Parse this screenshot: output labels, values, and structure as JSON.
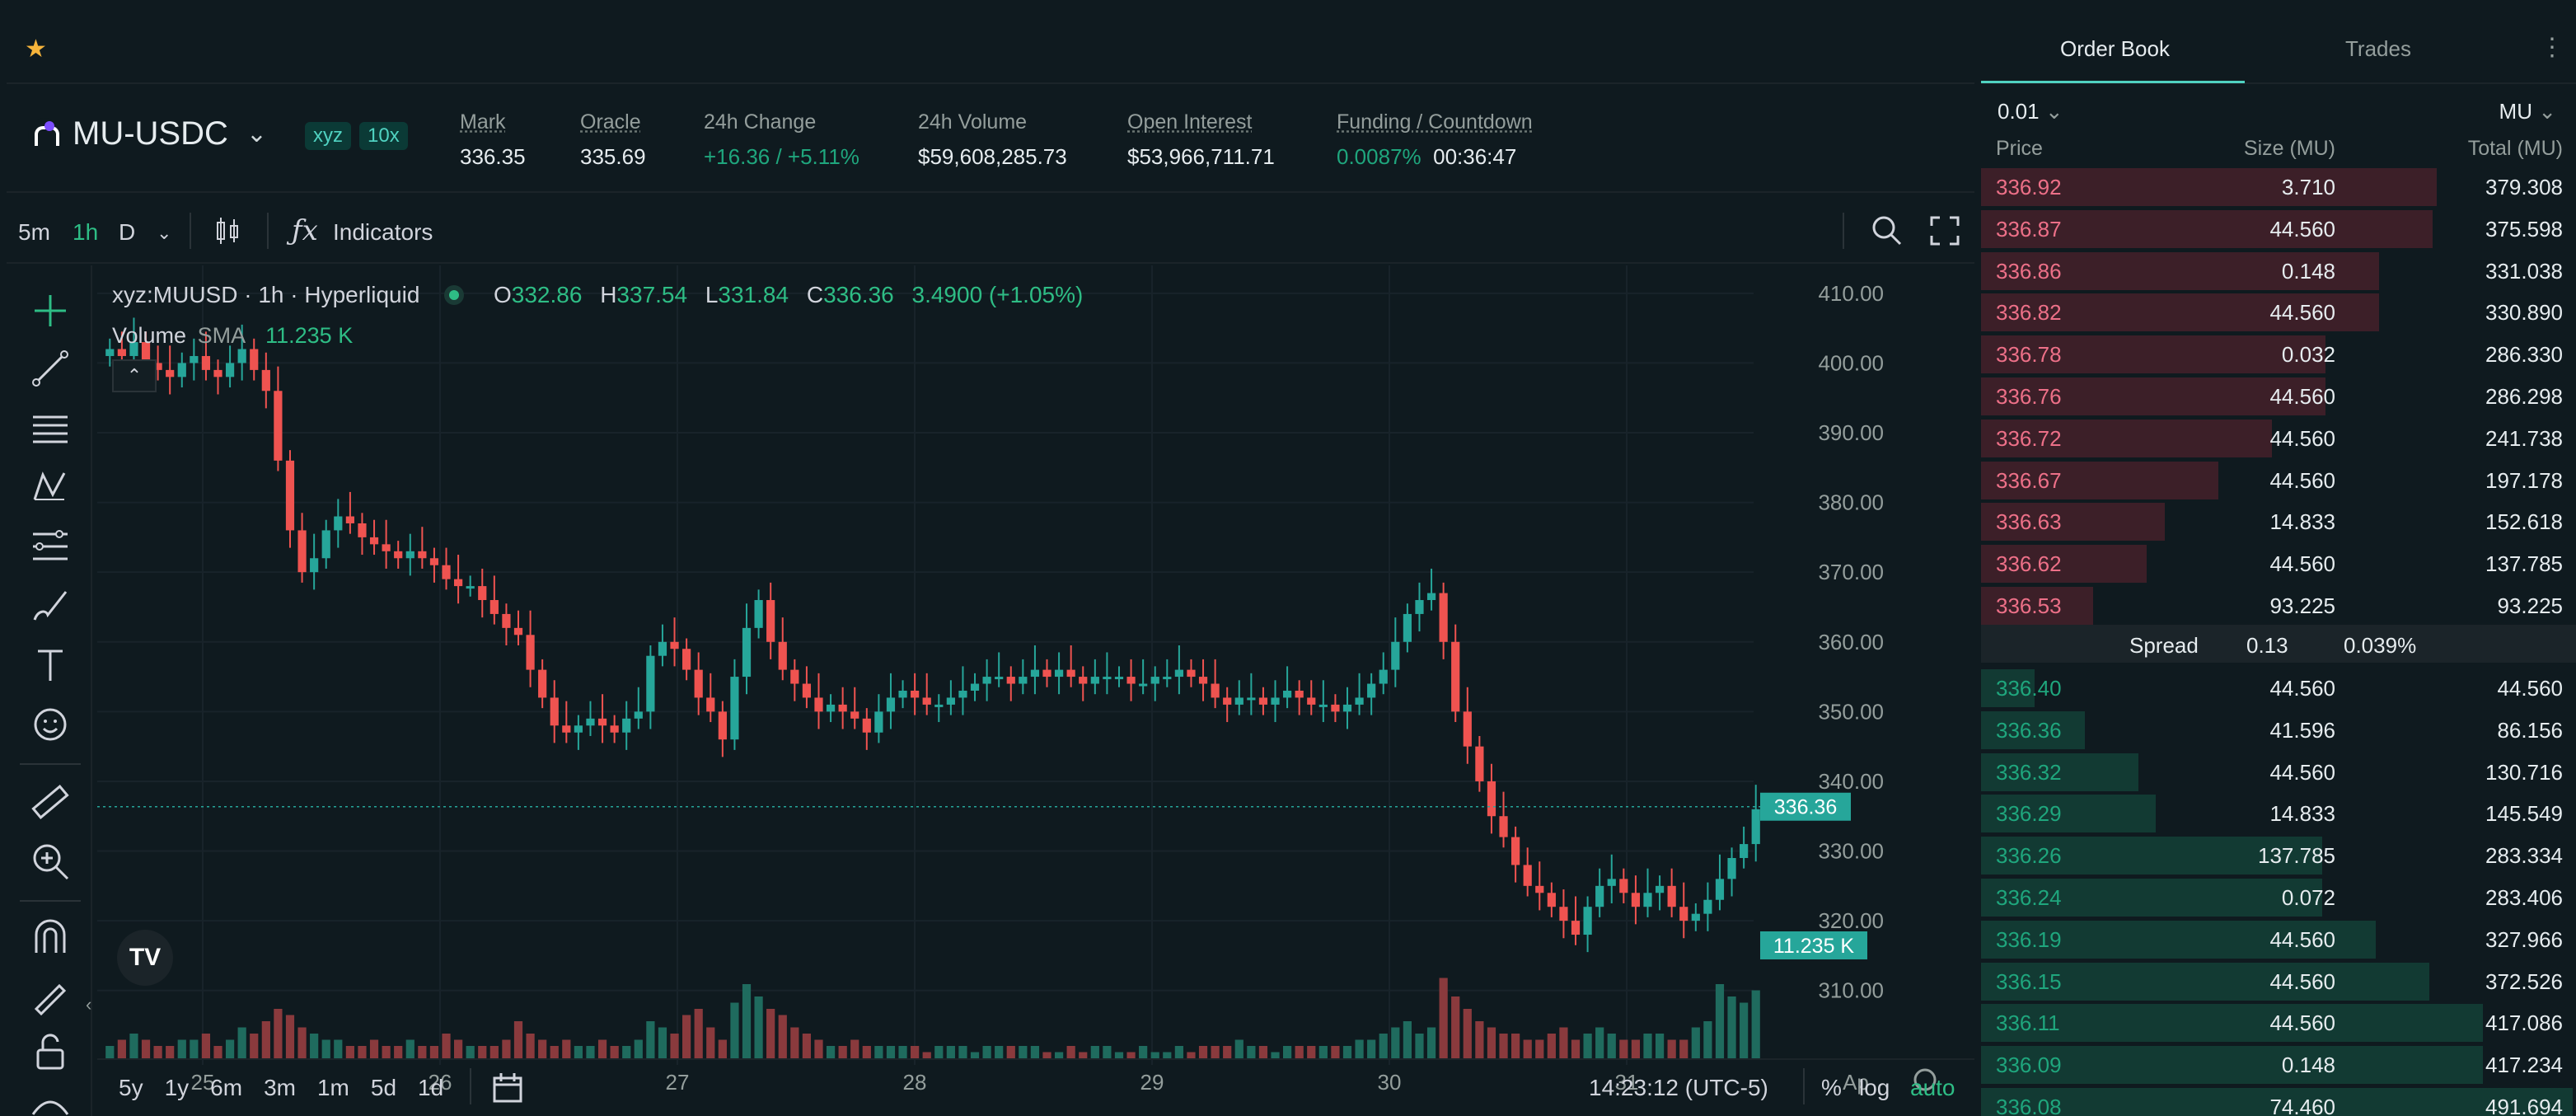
{
  "topbar": {
    "favorite_icon": "star-icon"
  },
  "header": {
    "symbol": "MU-USDC",
    "tag_dex": "xyz",
    "tag_leverage": "10x",
    "mark_label": "Mark",
    "mark_value": "336.35",
    "oracle_label": "Oracle",
    "oracle_value": "335.69",
    "change_label": "24h Change",
    "change_value": "+16.36 / +5.11%",
    "volume_label": "24h Volume",
    "volume_value": "$59,608,285.73",
    "oi_label": "Open Interest",
    "oi_value": "$53,966,711.71",
    "funding_label": "Funding / Countdown",
    "funding_rate": "0.0087%",
    "funding_countdown": "00:36:47"
  },
  "chart_toolbar": {
    "timeframes": [
      "5m",
      "1h",
      "D"
    ],
    "active_timeframe": "1h",
    "indicators_label": "Indicators"
  },
  "legend": {
    "title": "xyz:MUUSD · 1h · Hyperliquid",
    "o_label": "O",
    "o_value": "332.86",
    "h_label": "H",
    "h_value": "337.54",
    "l_label": "L",
    "l_value": "331.84",
    "c_label": "C",
    "c_value": "336.36",
    "change": "3.4900 (+1.05%)",
    "volume_label": "Volume",
    "sma_label": "SMA",
    "volume_value": "11.235 K"
  },
  "chart_data": {
    "type": "candlestick",
    "y_axis_ticks": [
      "410.00",
      "400.00",
      "390.00",
      "380.00",
      "370.00",
      "360.00",
      "350.00",
      "340.00",
      "330.00",
      "320.00",
      "310.00"
    ],
    "x_axis_ticks": [
      "25",
      "26",
      "27",
      "28",
      "29",
      "30",
      "31",
      "Ap"
    ],
    "ylim": [
      305,
      414
    ],
    "last_price_label": "336.36",
    "last_volume_label": "11.235 K",
    "close_series": [
      402,
      401,
      403,
      400,
      399,
      398,
      400,
      401,
      399,
      398,
      400,
      402,
      399,
      396,
      386,
      376,
      370,
      372,
      376,
      378,
      377,
      375,
      374,
      373,
      372,
      373,
      372,
      371,
      369,
      368,
      368,
      366,
      364,
      362,
      361,
      356,
      352,
      348,
      347,
      348,
      349,
      348,
      347,
      349,
      350,
      358,
      360,
      359,
      356,
      352,
      350,
      346,
      355,
      362,
      366,
      360,
      356,
      354,
      352,
      350,
      351,
      350,
      349,
      347,
      350,
      352,
      353,
      352,
      351,
      351,
      352,
      353,
      354,
      355,
      355,
      354,
      355,
      356,
      355,
      356,
      355,
      354,
      355,
      355,
      355,
      354,
      354,
      355,
      355,
      356,
      355,
      354,
      352,
      351,
      352,
      352,
      351,
      352,
      353,
      352,
      351,
      351,
      350,
      351,
      352,
      354,
      356,
      360,
      364,
      366,
      367,
      360,
      350,
      345,
      340,
      335,
      332,
      328,
      325,
      324,
      322,
      320,
      318,
      322,
      325,
      326,
      324,
      322,
      324,
      325,
      322,
      320,
      321,
      323,
      326,
      329,
      331,
      336
    ],
    "volume_series": [
      2,
      3,
      4,
      3,
      2,
      2,
      3,
      3,
      4,
      2,
      3,
      5,
      4,
      6,
      8,
      7,
      5,
      4,
      3,
      3,
      2,
      2,
      3,
      2,
      2,
      3,
      2,
      2,
      4,
      3,
      2,
      2,
      2,
      3,
      6,
      4,
      3,
      2,
      3,
      2,
      2,
      3,
      2,
      2,
      3,
      6,
      5,
      4,
      7,
      8,
      5,
      3,
      9,
      12,
      10,
      8,
      7,
      5,
      4,
      3,
      2,
      2,
      3,
      2,
      2,
      2,
      2,
      2,
      1,
      2,
      2,
      2,
      1,
      2,
      2,
      2,
      2,
      2,
      1,
      1,
      2,
      1,
      2,
      2,
      1,
      1,
      2,
      1,
      1,
      2,
      1,
      2,
      2,
      2,
      3,
      2,
      2,
      1,
      2,
      2,
      2,
      2,
      2,
      2,
      3,
      3,
      4,
      5,
      6,
      4,
      5,
      13,
      10,
      8,
      6,
      5,
      4,
      4,
      3,
      3,
      4,
      5,
      3,
      4,
      5,
      4,
      3,
      3,
      4,
      4,
      3,
      3,
      5,
      6,
      12,
      10,
      9,
      11
    ]
  },
  "bottom_bar": {
    "ranges": [
      "5y",
      "1y",
      "6m",
      "3m",
      "1m",
      "5d",
      "1d"
    ],
    "time": "14:23:12 (UTC-5)",
    "percent": "%",
    "log": "log",
    "auto": "auto"
  },
  "book": {
    "tab_orderbook": "Order Book",
    "tab_trades": "Trades",
    "tick": "0.01",
    "unit": "MU",
    "col_price": "Price",
    "col_size": "Size (MU)",
    "col_total": "Total (MU)",
    "asks": [
      {
        "p": "336.92",
        "s": "3.710",
        "t": "379.308",
        "f": 0.766
      },
      {
        "p": "336.87",
        "s": "44.560",
        "t": "375.598",
        "f": 0.759
      },
      {
        "p": "336.86",
        "s": "0.148",
        "t": "331.038",
        "f": 0.669
      },
      {
        "p": "336.82",
        "s": "44.560",
        "t": "330.890",
        "f": 0.669
      },
      {
        "p": "336.78",
        "s": "0.032",
        "t": "286.330",
        "f": 0.579
      },
      {
        "p": "336.76",
        "s": "44.560",
        "t": "286.298",
        "f": 0.579
      },
      {
        "p": "336.72",
        "s": "44.560",
        "t": "241.738",
        "f": 0.489
      },
      {
        "p": "336.67",
        "s": "44.560",
        "t": "197.178",
        "f": 0.399
      },
      {
        "p": "336.63",
        "s": "14.833",
        "t": "152.618",
        "f": 0.309
      },
      {
        "p": "336.62",
        "s": "44.560",
        "t": "137.785",
        "f": 0.279
      },
      {
        "p": "336.53",
        "s": "93.225",
        "t": "93.225",
        "f": 0.189
      }
    ],
    "spread_label": "Spread",
    "spread_value": "0.13",
    "spread_pct": "0.039%",
    "bids": [
      {
        "p": "336.40",
        "s": "44.560",
        "t": "44.560",
        "f": 0.09
      },
      {
        "p": "336.36",
        "s": "41.596",
        "t": "86.156",
        "f": 0.174
      },
      {
        "p": "336.32",
        "s": "44.560",
        "t": "130.716",
        "f": 0.264
      },
      {
        "p": "336.29",
        "s": "14.833",
        "t": "145.549",
        "f": 0.294
      },
      {
        "p": "336.26",
        "s": "137.785",
        "t": "283.334",
        "f": 0.573
      },
      {
        "p": "336.24",
        "s": "0.072",
        "t": "283.406",
        "f": 0.573
      },
      {
        "p": "336.19",
        "s": "44.560",
        "t": "327.966",
        "f": 0.663
      },
      {
        "p": "336.15",
        "s": "44.560",
        "t": "372.526",
        "f": 0.753
      },
      {
        "p": "336.11",
        "s": "44.560",
        "t": "417.086",
        "f": 0.843
      },
      {
        "p": "336.09",
        "s": "0.148",
        "t": "417.234",
        "f": 0.843
      },
      {
        "p": "336.08",
        "s": "74.460",
        "t": "491.694",
        "f": 0.994
      }
    ]
  }
}
